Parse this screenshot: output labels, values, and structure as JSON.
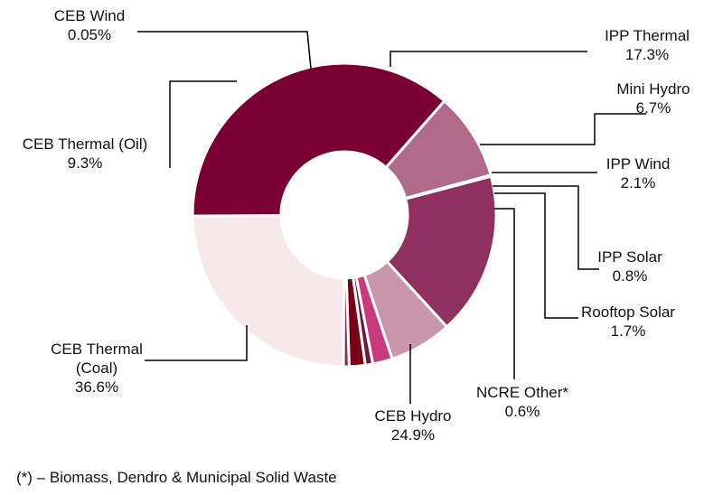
{
  "chart_data": {
    "type": "pie",
    "variant": "donut",
    "title": "",
    "slices": [
      {
        "key": "ceb_hydro",
        "name": "CEB Hydro",
        "lines": [
          "CEB Hydro"
        ],
        "value": 24.9,
        "value_label": "24.9%",
        "color": "#f6e8eb"
      },
      {
        "key": "ceb_thermal_coal",
        "name": "CEB Thermal (Coal)",
        "lines": [
          "CEB Thermal",
          "(Coal)"
        ],
        "value": 36.6,
        "value_label": "36.6%",
        "color": "#7a0034"
      },
      {
        "key": "ceb_thermal_oil",
        "name": "CEB Thermal (Oil)",
        "lines": [
          "CEB Thermal (Oil)"
        ],
        "value": 9.3,
        "value_label": "9.3%",
        "color": "#b06a8a"
      },
      {
        "key": "ceb_wind",
        "name": "CEB Wind",
        "lines": [
          "CEB Wind"
        ],
        "value": 0.05,
        "value_label": "0.05%",
        "color": "#c99aae"
      },
      {
        "key": "ipp_thermal",
        "name": "IPP Thermal",
        "lines": [
          "IPP Thermal"
        ],
        "value": 17.3,
        "value_label": "17.3%",
        "color": "#8f3060"
      },
      {
        "key": "mini_hydro",
        "name": "Mini Hydro",
        "lines": [
          "Mini Hydro"
        ],
        "value": 6.7,
        "value_label": "6.7%",
        "color": "#c996ac"
      },
      {
        "key": "ipp_wind",
        "name": "IPP Wind",
        "lines": [
          "IPP Wind"
        ],
        "value": 2.1,
        "value_label": "2.1%",
        "color": "#c83a7e"
      },
      {
        "key": "ipp_solar",
        "name": "IPP Solar",
        "lines": [
          "IPP Solar"
        ],
        "value": 0.8,
        "value_label": "0.8%",
        "color": "#6e1a34"
      },
      {
        "key": "rooftop_solar",
        "name": "Rooftop Solar",
        "lines": [
          "Rooftop Solar"
        ],
        "value": 1.7,
        "value_label": "1.7%",
        "color": "#7a0016"
      },
      {
        "key": "ncre_other",
        "name": "NCRE Other*",
        "lines": [
          "NCRE Other*"
        ],
        "value": 0.6,
        "value_label": "0.6%",
        "color": "#8f2a5a"
      }
    ],
    "footnote": "(*) – Biomass, Dendro & Municipal Solid Waste"
  }
}
